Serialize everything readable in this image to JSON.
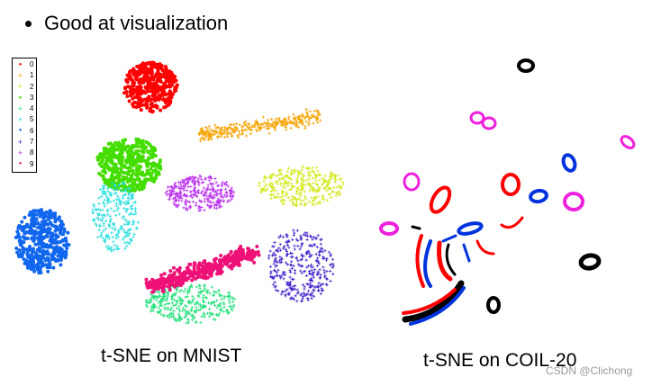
{
  "bullet": {
    "text": "Good at visualization"
  },
  "mnist": {
    "caption": "t-SNE on MNIST",
    "legend": [
      {
        "label": "0",
        "color": "#ff0000",
        "marker": "dot"
      },
      {
        "label": "1",
        "color": "#f5a300",
        "marker": "plus"
      },
      {
        "label": "2",
        "color": "#d4e81a",
        "marker": "plus"
      },
      {
        "label": "3",
        "color": "#44dd00",
        "marker": "dot"
      },
      {
        "label": "4",
        "color": "#22e07a",
        "marker": "plus"
      },
      {
        "label": "5",
        "color": "#22dddd",
        "marker": "plus"
      },
      {
        "label": "6",
        "color": "#1166ee",
        "marker": "dot"
      },
      {
        "label": "7",
        "color": "#4422cc",
        "marker": "plus"
      },
      {
        "label": "8",
        "color": "#bb33ee",
        "marker": "plus"
      },
      {
        "label": "9",
        "color": "#ee1177",
        "marker": "dot"
      }
    ]
  },
  "coil": {
    "caption": "t-SNE on COIL-20"
  },
  "watermark": {
    "text": "CSDN @Clichong"
  }
}
